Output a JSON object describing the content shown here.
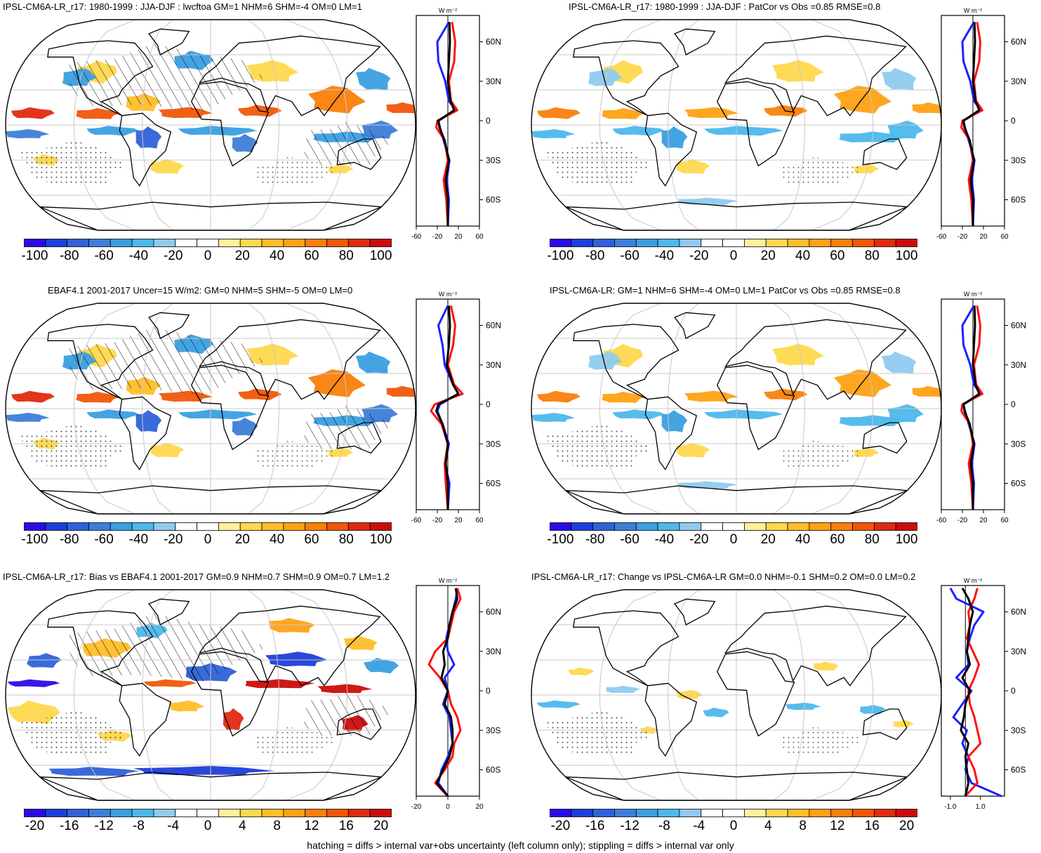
{
  "footer": "hatching = diffs > internal var+obs uncertainty (left column only); stippling = diffs > internal var only",
  "units_label": "W m⁻²",
  "profile_lat_labels": [
    "60N",
    "30N",
    "0",
    "30S",
    "60S"
  ],
  "colors": {
    "scale": [
      "#2a0de6",
      "#1d3ed9",
      "#2f62d8",
      "#3d7ed9",
      "#3a9fe0",
      "#4db8ec",
      "#8ecbef",
      "#ffffff",
      "#ffffff",
      "#fff09c",
      "#ffd84d",
      "#ffbe29",
      "#ffa114",
      "#fa7f0b",
      "#f05708",
      "#e02a10",
      "#cc0c0c"
    ],
    "profile_blue": "#1b22ff",
    "profile_red": "#ff1111",
    "profile_black": "#000000",
    "land_outline": "#000000",
    "graticule": "#c8c8c8"
  },
  "chart_data": [
    {
      "type": "heatmap",
      "title": "IPSL-CM6A-LR_r17: 1980-1999 : JJA-DJF : lwcftoa GM=1 NHM=6 SHM=-4 OM=0 LM=1",
      "colorbar_ticks": [
        "-100",
        "-80",
        "-60",
        "-40",
        "-20",
        "0",
        "20",
        "40",
        "60",
        "80",
        "100"
      ],
      "colorbar_range": [
        -100,
        100
      ],
      "profile_x_ticks": [
        "-60",
        "-20",
        "20",
        "60"
      ],
      "profile_xlim": [
        -60,
        60
      ],
      "lat": [
        -80,
        -60,
        -45,
        -30,
        -15,
        -5,
        0,
        8,
        15,
        30,
        45,
        60,
        75
      ],
      "blue": [
        0,
        2,
        -2,
        3,
        -8,
        -15,
        -18,
        15,
        2,
        -5,
        -18,
        -20,
        2
      ],
      "red": [
        0,
        -3,
        -8,
        0,
        -6,
        -22,
        -20,
        18,
        6,
        2,
        12,
        14,
        8
      ],
      "black": [
        0,
        0,
        -4,
        2,
        -6,
        -16,
        -18,
        12,
        5,
        0,
        2,
        4,
        3
      ]
    },
    {
      "type": "heatmap",
      "title": "IPSL-CM6A-LR_r17: 1980-1999 : JJA-DJF : PatCor vs Obs =0.85 RMSE=0.8",
      "colorbar_ticks": [
        "-100",
        "-80",
        "-60",
        "-40",
        "-20",
        "0",
        "20",
        "40",
        "60",
        "80",
        "100"
      ],
      "colorbar_range": [
        -100,
        100
      ],
      "profile_x_ticks": [
        "-60",
        "-20",
        "20",
        "60"
      ],
      "profile_xlim": [
        -60,
        60
      ],
      "lat": [
        -80,
        -60,
        -45,
        -30,
        -15,
        -5,
        0,
        8,
        15,
        30,
        45,
        60,
        75
      ],
      "blue": [
        0,
        2,
        -2,
        3,
        -8,
        -15,
        -18,
        15,
        2,
        -5,
        -18,
        -20,
        2
      ],
      "red": [
        0,
        -3,
        -8,
        0,
        -6,
        -22,
        -20,
        18,
        6,
        2,
        12,
        14,
        8
      ],
      "black": [
        0,
        0,
        -4,
        2,
        -6,
        -16,
        -18,
        12,
        5,
        0,
        2,
        4,
        3
      ]
    },
    {
      "type": "heatmap",
      "title": "EBAF4.1 2001-2017 Uncer=15 W/m2: GM=0 NHM=5 SHM=-5 OM=0 LM=0",
      "colorbar_ticks": [
        "-100",
        "-80",
        "-60",
        "-40",
        "-20",
        "0",
        "20",
        "40",
        "60",
        "80",
        "100"
      ],
      "colorbar_range": [
        -100,
        100
      ],
      "profile_x_ticks": [
        "-60",
        "-20",
        "20",
        "60"
      ],
      "profile_xlim": [
        -60,
        60
      ],
      "lat": [
        -80,
        -60,
        -45,
        -30,
        -15,
        -5,
        0,
        8,
        15,
        30,
        45,
        60,
        75
      ],
      "blue": [
        0,
        3,
        -5,
        2,
        -10,
        -20,
        -15,
        20,
        10,
        -6,
        -10,
        -18,
        0
      ],
      "red": [
        0,
        -4,
        -6,
        0,
        -12,
        -32,
        -25,
        28,
        12,
        0,
        10,
        14,
        6
      ],
      "black": [
        0,
        0,
        -4,
        0,
        -10,
        -22,
        -18,
        20,
        10,
        -2,
        2,
        4,
        2
      ]
    },
    {
      "type": "heatmap",
      "title": "IPSL-CM6A-LR: GM=1 NHM=6 SHM=-4 OM=0 LM=1 PatCor vs Obs =0.85 RMSE=0.8",
      "colorbar_ticks": [
        "-100",
        "-80",
        "-60",
        "-40",
        "-20",
        "0",
        "20",
        "40",
        "60",
        "80",
        "100"
      ],
      "colorbar_range": [
        -100,
        100
      ],
      "profile_x_ticks": [
        "-60",
        "-20",
        "20",
        "60"
      ],
      "profile_xlim": [
        -60,
        60
      ],
      "lat": [
        -80,
        -60,
        -45,
        -30,
        -15,
        -5,
        0,
        8,
        15,
        30,
        45,
        60,
        75
      ],
      "blue": [
        0,
        2,
        -2,
        3,
        -8,
        -15,
        -18,
        15,
        2,
        -5,
        -18,
        -20,
        2
      ],
      "red": [
        0,
        -3,
        -8,
        0,
        -6,
        -22,
        -20,
        18,
        6,
        2,
        12,
        14,
        8
      ],
      "black": [
        0,
        0,
        -4,
        2,
        -6,
        -16,
        -18,
        12,
        5,
        0,
        2,
        4,
        3
      ]
    },
    {
      "type": "heatmap",
      "title": "IPSL-CM6A-LR_r17: Bias vs EBAF4.1 2001-2017 GM=0.9 NHM=0.7 SHM=0.9 OM=0.7 LM=1.2",
      "colorbar_ticks": [
        "-20",
        "-16",
        "-12",
        "-8",
        "-4",
        "0",
        "4",
        "8",
        "12",
        "16",
        "20"
      ],
      "colorbar_range": [
        -20,
        20
      ],
      "profile_x_ticks": [
        "-20",
        "0",
        "20"
      ],
      "profile_xlim": [
        -20,
        20
      ],
      "lat": [
        -80,
        -70,
        -60,
        -50,
        -40,
        -30,
        -20,
        -10,
        0,
        10,
        20,
        30,
        40,
        50,
        60,
        70,
        78
      ],
      "blue": [
        0,
        -6,
        -4,
        0,
        3,
        2,
        1,
        -3,
        0,
        -2,
        4,
        0,
        -1,
        1,
        3,
        5,
        6
      ],
      "red": [
        0,
        -8,
        -2,
        3,
        4,
        8,
        6,
        2,
        0,
        -5,
        -12,
        -8,
        0,
        2,
        4,
        8,
        6
      ],
      "black": [
        0,
        -7,
        -3,
        1,
        3,
        3,
        2,
        -2,
        0,
        -4,
        -2,
        -3,
        0,
        1,
        3,
        6,
        5
      ]
    },
    {
      "type": "heatmap",
      "title": "IPSL-CM6A-LR_r17: Change vs IPSL-CM6A-LR GM=0.0 NHM=-0.1 SHM=0.2 OM=0.0 LM=0.2",
      "colorbar_ticks": [
        "-20",
        "-16",
        "-12",
        "-8",
        "-4",
        "0",
        "4",
        "8",
        "12",
        "16",
        "20"
      ],
      "colorbar_range": [
        -20,
        20
      ],
      "profile_x_ticks": [
        "-1.0",
        "1.0"
      ],
      "profile_xlim": [
        -1.6,
        2.6
      ],
      "lat": [
        -80,
        -70,
        -60,
        -50,
        -40,
        -30,
        -20,
        -10,
        0,
        10,
        20,
        30,
        40,
        50,
        60,
        70,
        78
      ],
      "blue": [
        2.4,
        0.4,
        0.0,
        0.2,
        -0.2,
        0.1,
        -0.8,
        -0.2,
        0.4,
        -0.6,
        0.2,
        0.1,
        0.3,
        0.6,
        1.2,
        -0.6,
        -1.0
      ],
      "red": [
        0.0,
        0.8,
        0.6,
        0.2,
        1.0,
        0.8,
        0.6,
        0.3,
        0.2,
        0.6,
        0.9,
        0.5,
        0.1,
        0.3,
        0.2,
        0.6,
        0.8
      ],
      "black": [
        0.0,
        0.2,
        0.1,
        0.0,
        0.2,
        -0.3,
        -0.1,
        0.0,
        0.3,
        -0.2,
        0.3,
        0.1,
        0.2,
        0.3,
        0.5,
        0.2,
        -0.2
      ]
    }
  ]
}
